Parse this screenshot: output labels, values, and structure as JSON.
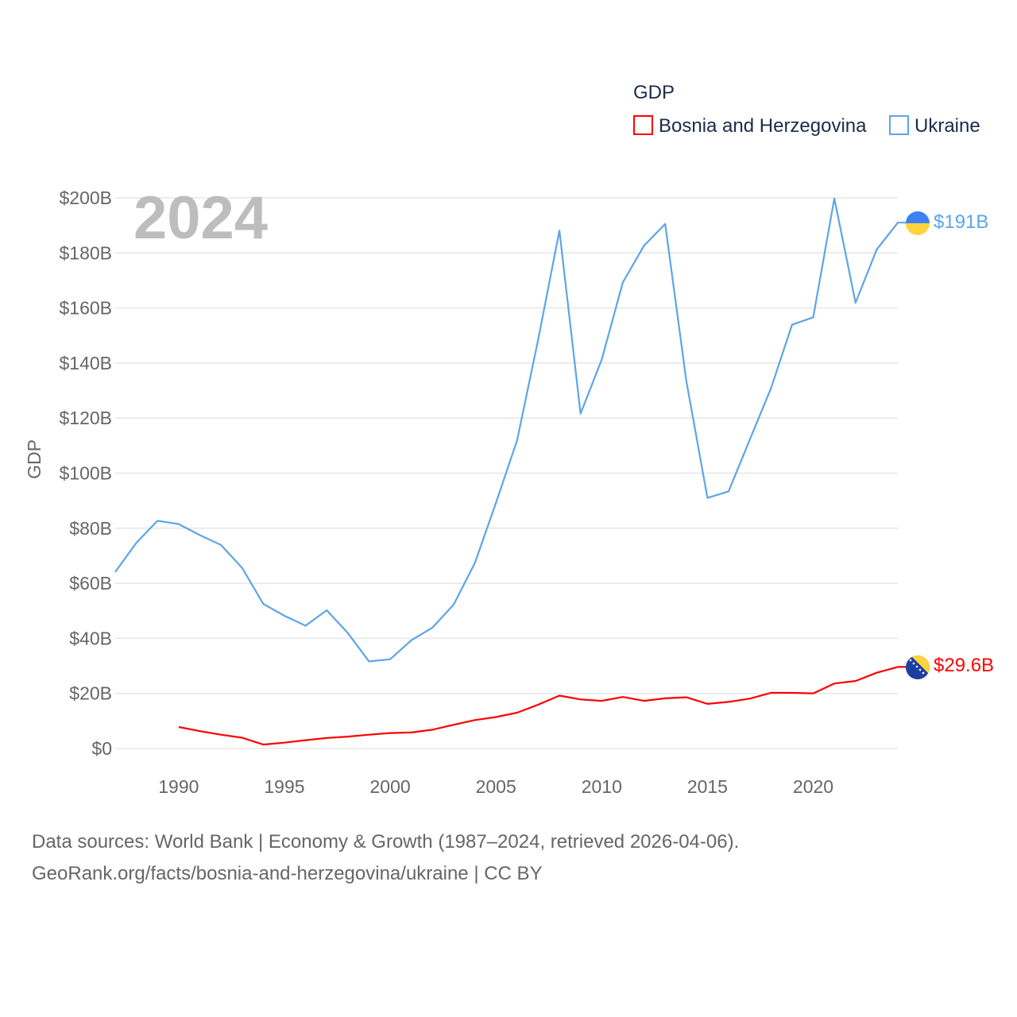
{
  "chart_data": {
    "type": "line",
    "legend_title": "GDP",
    "ylabel": "GDP",
    "year_label": "2024",
    "ylim": [
      0,
      200
    ],
    "xlim": [
      1987,
      2024
    ],
    "y_ticks": [
      {
        "value": 0,
        "label": "$0"
      },
      {
        "value": 20,
        "label": "$20B"
      },
      {
        "value": 40,
        "label": "$40B"
      },
      {
        "value": 60,
        "label": "$60B"
      },
      {
        "value": 80,
        "label": "$80B"
      },
      {
        "value": 100,
        "label": "$100B"
      },
      {
        "value": 120,
        "label": "$120B"
      },
      {
        "value": 140,
        "label": "$140B"
      },
      {
        "value": 160,
        "label": "$160B"
      },
      {
        "value": 180,
        "label": "$180B"
      },
      {
        "value": 200,
        "label": "$200B"
      }
    ],
    "x_ticks": [
      {
        "value": 1990,
        "label": "1990"
      },
      {
        "value": 1995,
        "label": "1995"
      },
      {
        "value": 2000,
        "label": "2000"
      },
      {
        "value": 2005,
        "label": "2005"
      },
      {
        "value": 2010,
        "label": "2010"
      },
      {
        "value": 2015,
        "label": "2015"
      },
      {
        "value": 2020,
        "label": "2020"
      }
    ],
    "series": [
      {
        "name": "Bosnia and Herzegovina",
        "color": "#ff0000",
        "end_label": "$29.6B",
        "flag": "bosnia-flag",
        "x": [
          1990,
          1991,
          1992,
          1993,
          1994,
          1995,
          1996,
          1997,
          1998,
          1999,
          2000,
          2001,
          2002,
          2003,
          2004,
          2005,
          2006,
          2007,
          2008,
          2009,
          2010,
          2011,
          2012,
          2013,
          2014,
          2015,
          2016,
          2017,
          2018,
          2019,
          2020,
          2021,
          2022,
          2023,
          2024
        ],
        "values": [
          7.8,
          6.3,
          5.0,
          3.9,
          1.4,
          2.1,
          3.0,
          3.8,
          4.3,
          5.0,
          5.6,
          5.8,
          6.8,
          8.6,
          10.3,
          11.4,
          13.0,
          15.9,
          19.2,
          17.8,
          17.3,
          18.7,
          17.3,
          18.2,
          18.6,
          16.2,
          16.9,
          18.1,
          20.2,
          20.2,
          20.0,
          23.6,
          24.5,
          27.5,
          29.6
        ]
      },
      {
        "name": "Ukraine",
        "color": "#5da5e8",
        "end_label": "$191B",
        "flag": "ukraine-flag",
        "x": [
          1987,
          1988,
          1989,
          1990,
          1991,
          1992,
          1993,
          1994,
          1995,
          1996,
          1997,
          1998,
          1999,
          2000,
          2001,
          2002,
          2003,
          2004,
          2005,
          2006,
          2007,
          2008,
          2009,
          2010,
          2011,
          2012,
          2013,
          2014,
          2015,
          2016,
          2017,
          2018,
          2019,
          2020,
          2021,
          2022,
          2023,
          2024
        ],
        "values": [
          64.1,
          74.7,
          82.7,
          81.5,
          77.5,
          73.9,
          65.6,
          52.5,
          48.2,
          44.6,
          50.2,
          41.9,
          31.6,
          32.4,
          39.3,
          43.9,
          52.2,
          67.3,
          89.2,
          111.9,
          148.6,
          188.1,
          121.6,
          141.2,
          169.3,
          182.6,
          190.5,
          133.5,
          91.0,
          93.4,
          112.1,
          130.8,
          153.9,
          156.6,
          199.8,
          161.9,
          181.2,
          191.0
        ]
      }
    ]
  },
  "footer": {
    "line1": "Data sources: World Bank | Economy & Growth (1987–2024, retrieved 2026-04-06).",
    "line2": "GeoRank.org/facts/bosnia-and-herzegovina/ukraine | CC BY"
  }
}
